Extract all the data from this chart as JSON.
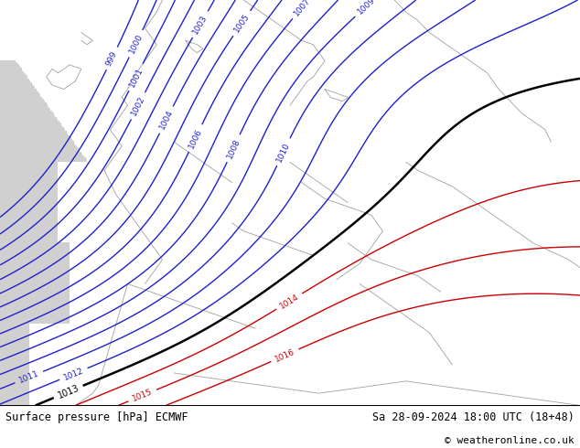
{
  "title_left": "Surface pressure [hPa] ECMWF",
  "title_right": "Sa 28-09-2024 18:00 UTC (18+48)",
  "copyright": "© weatheronline.co.uk",
  "bg_land_color": "#c8e6a0",
  "bg_sea_color": "#d0d0d0",
  "bottom_bar_color": "#ffffff",
  "bottom_bar_height": 0.095,
  "label_fontsize": 8.5,
  "copyright_fontsize": 8,
  "fig_width": 6.34,
  "fig_height": 4.9,
  "dpi": 100,
  "isobar_blue_color": "#2020cc",
  "isobar_red_color": "#cc0000",
  "isobar_black_color": "#000000",
  "coastline_color": "#a0a0a0",
  "font_family": "DejaVu Sans Mono"
}
